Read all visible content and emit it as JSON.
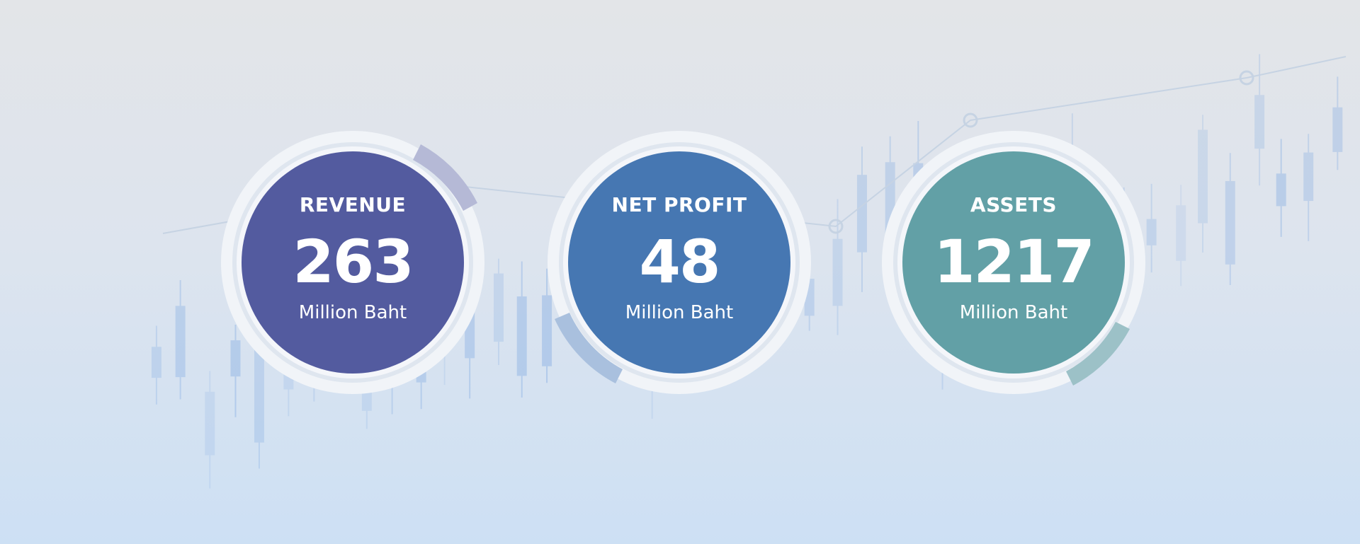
{
  "metrics": [
    {
      "title": "REVENUE",
      "value": "263",
      "unit": "Million Baht",
      "color": "#535b9f",
      "accent": "#b5b9d6"
    },
    {
      "title": "NET PROFIT",
      "value": "48",
      "unit": "Million Baht",
      "color": "#4677b2",
      "accent": "#a9c0de"
    },
    {
      "title": "ASSETS",
      "value": "1217",
      "unit": "Million Baht",
      "color": "#62a0a6",
      "accent": "#9cc1c7"
    }
  ]
}
